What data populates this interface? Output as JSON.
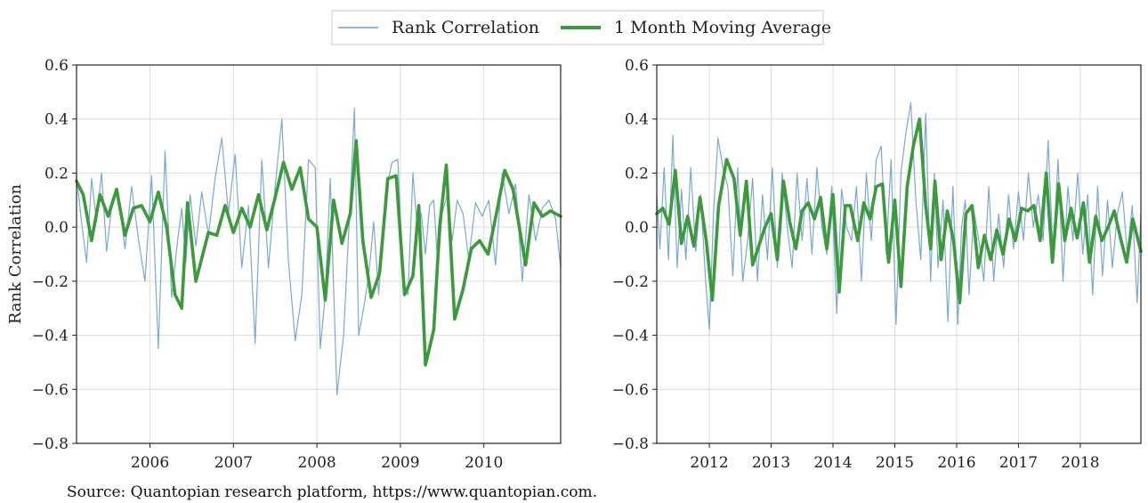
{
  "legend": {
    "items": [
      {
        "label": "Rank Correlation",
        "color": "#6b9fd1"
      },
      {
        "label": "1 Month Moving Average",
        "color": "#3c9a3c"
      }
    ],
    "placement": "top-center"
  },
  "source_text": "Source: Quantopian research platform, https://www.quantopian.com.",
  "colors": {
    "raw": "#6b9fd1",
    "ma": "#3c9a3c",
    "grid": "#dcdcdc",
    "axis": "#222222"
  },
  "chart_data": [
    {
      "type": "line",
      "ylabel": "Rank Correlation",
      "xlabel": "",
      "xlim": [
        2005.12,
        2010.92
      ],
      "ylim": [
        -0.8,
        0.6
      ],
      "y_ticks": [
        -0.8,
        -0.6,
        -0.4,
        -0.2,
        0.0,
        0.2,
        0.4,
        0.6
      ],
      "y_tick_labels": [
        "−0.8",
        "−0.6",
        "−0.4",
        "−0.2",
        "0.0",
        "0.2",
        "0.4",
        "0.6"
      ],
      "x_ticks": [
        2006,
        2007,
        2008,
        2009,
        2010
      ],
      "x_tick_labels": [
        "2006",
        "2007",
        "2008",
        "2009",
        "2010"
      ],
      "grid": true,
      "series": [
        {
          "name": "1 Month Moving Average",
          "x": [
            2005.12,
            2005.2,
            2005.3,
            2005.4,
            2005.5,
            2005.6,
            2005.7,
            2005.8,
            2005.9,
            2006.0,
            2006.1,
            2006.2,
            2006.3,
            2006.38,
            2006.45,
            2006.55,
            2006.7,
            2006.8,
            2006.9,
            2007.0,
            2007.1,
            2007.2,
            2007.3,
            2007.4,
            2007.5,
            2007.6,
            2007.7,
            2007.8,
            2007.9,
            2008.0,
            2008.1,
            2008.2,
            2008.3,
            2008.4,
            2008.47,
            2008.55,
            2008.65,
            2008.75,
            2008.85,
            2008.95,
            2009.05,
            2009.15,
            2009.22,
            2009.3,
            2009.4,
            2009.47,
            2009.55,
            2009.65,
            2009.75,
            2009.85,
            2009.95,
            2010.05,
            2010.15,
            2010.25,
            2010.35,
            2010.5,
            2010.6,
            2010.7,
            2010.8,
            2010.92
          ],
          "y": [
            0.17,
            0.12,
            -0.05,
            0.12,
            0.04,
            0.14,
            -0.03,
            0.07,
            0.08,
            0.02,
            0.13,
            0.0,
            -0.25,
            -0.3,
            0.09,
            -0.2,
            -0.02,
            -0.03,
            0.08,
            -0.02,
            0.07,
            0.0,
            0.12,
            -0.01,
            0.11,
            0.24,
            0.14,
            0.22,
            0.03,
            0.0,
            -0.27,
            0.1,
            -0.06,
            0.05,
            0.32,
            -0.05,
            -0.26,
            -0.17,
            0.18,
            0.19,
            -0.25,
            -0.18,
            0.08,
            -0.51,
            -0.38,
            0.0,
            0.23,
            -0.34,
            -0.23,
            -0.08,
            -0.05,
            -0.1,
            0.05,
            0.21,
            0.14,
            -0.14,
            0.09,
            0.04,
            0.06,
            0.04
          ]
        },
        {
          "name": "Rank Correlation",
          "x": [
            2005.12,
            2005.18,
            2005.24,
            2005.3,
            2005.36,
            2005.42,
            2005.48,
            2005.55,
            2005.62,
            2005.7,
            2005.78,
            2005.86,
            2005.94,
            2006.02,
            2006.1,
            2006.18,
            2006.26,
            2006.33,
            2006.38,
            2006.43,
            2006.48,
            2006.55,
            2006.62,
            2006.7,
            2006.78,
            2006.86,
            2006.94,
            2007.02,
            2007.1,
            2007.18,
            2007.26,
            2007.34,
            2007.42,
            2007.5,
            2007.58,
            2007.66,
            2007.74,
            2007.82,
            2007.9,
            2007.98,
            2008.04,
            2008.1,
            2008.16,
            2008.24,
            2008.32,
            2008.4,
            2008.45,
            2008.5,
            2008.56,
            2008.62,
            2008.68,
            2008.74,
            2008.82,
            2008.9,
            2008.97,
            2009.03,
            2009.09,
            2009.15,
            2009.2,
            2009.25,
            2009.3,
            2009.35,
            2009.4,
            2009.45,
            2009.5,
            2009.56,
            2009.62,
            2009.68,
            2009.75,
            2009.82,
            2009.9,
            2009.98,
            2010.06,
            2010.14,
            2010.22,
            2010.3,
            2010.38,
            2010.46,
            2010.54,
            2010.62,
            2010.7,
            2010.78,
            2010.86,
            2010.92
          ],
          "y": [
            0.19,
            0.02,
            -0.13,
            0.18,
            0.02,
            0.2,
            -0.09,
            0.1,
            0.13,
            -0.08,
            0.15,
            -0.04,
            -0.2,
            0.19,
            -0.45,
            0.28,
            -0.26,
            -0.05,
            0.07,
            -0.13,
            0.12,
            -0.07,
            0.13,
            -0.03,
            0.18,
            0.33,
            0.05,
            0.27,
            -0.15,
            0.08,
            -0.43,
            0.25,
            -0.15,
            0.15,
            0.4,
            -0.13,
            -0.42,
            -0.25,
            0.25,
            0.22,
            -0.45,
            -0.25,
            0.18,
            -0.62,
            -0.4,
            0.1,
            0.44,
            -0.4,
            -0.3,
            -0.18,
            0.02,
            -0.25,
            0.12,
            0.24,
            0.25,
            -0.2,
            -0.25,
            0.2,
            0.0,
            0.05,
            -0.1,
            0.08,
            0.1,
            -0.15,
            0.05,
            0.12,
            -0.05,
            0.1,
            0.05,
            -0.12,
            0.09,
            0.04,
            0.1,
            -0.14,
            0.2,
            0.05,
            0.16,
            -0.2,
            0.12,
            -0.05,
            0.07,
            0.1,
            0.03,
            -0.15
          ]
        }
      ]
    },
    {
      "type": "line",
      "ylabel": "",
      "xlabel": "",
      "xlim": [
        2011.15,
        2018.98
      ],
      "ylim": [
        -0.8,
        0.6
      ],
      "y_ticks": [
        -0.8,
        -0.6,
        -0.4,
        -0.2,
        0.0,
        0.2,
        0.4,
        0.6
      ],
      "y_tick_labels": [
        "−0.8",
        "−0.6",
        "−0.4",
        "−0.2",
        "0.0",
        "0.2",
        "0.4",
        "0.6"
      ],
      "x_ticks": [
        2012,
        2013,
        2014,
        2015,
        2016,
        2017,
        2018
      ],
      "x_tick_labels": [
        "2012",
        "2013",
        "2014",
        "2015",
        "2016",
        "2017",
        "2018"
      ],
      "grid": true,
      "series": [
        {
          "name": "1 Month Moving Average",
          "x": [
            2011.15,
            2011.25,
            2011.35,
            2011.45,
            2011.55,
            2011.65,
            2011.75,
            2011.85,
            2011.95,
            2012.05,
            2012.15,
            2012.28,
            2012.4,
            2012.5,
            2012.6,
            2012.7,
            2012.8,
            2012.9,
            2013.0,
            2013.1,
            2013.2,
            2013.3,
            2013.4,
            2013.5,
            2013.6,
            2013.7,
            2013.8,
            2013.9,
            2014.0,
            2014.1,
            2014.2,
            2014.28,
            2014.4,
            2014.5,
            2014.6,
            2014.7,
            2014.8,
            2014.9,
            2015.0,
            2015.1,
            2015.2,
            2015.3,
            2015.4,
            2015.5,
            2015.58,
            2015.65,
            2015.75,
            2015.85,
            2015.95,
            2016.05,
            2016.15,
            2016.25,
            2016.35,
            2016.45,
            2016.55,
            2016.65,
            2016.75,
            2016.85,
            2016.95,
            2017.05,
            2017.15,
            2017.25,
            2017.35,
            2017.45,
            2017.55,
            2017.65,
            2017.75,
            2017.85,
            2017.95,
            2018.05,
            2018.15,
            2018.25,
            2018.35,
            2018.45,
            2018.55,
            2018.65,
            2018.75,
            2018.85,
            2018.98
          ],
          "y": [
            0.05,
            0.07,
            0.01,
            0.21,
            -0.06,
            0.04,
            -0.07,
            0.11,
            -0.05,
            -0.27,
            0.08,
            0.25,
            0.18,
            -0.03,
            0.17,
            -0.14,
            -0.07,
            0.0,
            0.05,
            -0.12,
            0.17,
            0.02,
            -0.08,
            0.06,
            0.09,
            0.03,
            0.11,
            -0.08,
            0.12,
            -0.24,
            0.08,
            0.08,
            -0.05,
            0.09,
            0.03,
            0.15,
            0.16,
            -0.13,
            0.1,
            -0.22,
            0.15,
            0.3,
            0.4,
            0.08,
            -0.08,
            0.17,
            -0.12,
            0.06,
            -0.05,
            -0.28,
            0.05,
            0.08,
            -0.15,
            -0.03,
            -0.12,
            -0.01,
            -0.1,
            0.03,
            -0.05,
            0.07,
            0.06,
            0.08,
            -0.05,
            0.2,
            -0.13,
            0.16,
            -0.05,
            0.07,
            -0.04,
            0.09,
            -0.13,
            0.04,
            -0.05,
            0.0,
            0.06,
            -0.04,
            -0.13,
            0.03,
            -0.09
          ]
        },
        {
          "name": "Rank Correlation",
          "x": [
            2011.15,
            2011.2,
            2011.27,
            2011.34,
            2011.41,
            2011.48,
            2011.55,
            2011.62,
            2011.7,
            2011.78,
            2011.86,
            2011.94,
            2012.0,
            2012.07,
            2012.14,
            2012.22,
            2012.3,
            2012.38,
            2012.46,
            2012.54,
            2012.62,
            2012.7,
            2012.78,
            2012.86,
            2012.94,
            2013.02,
            2013.1,
            2013.18,
            2013.26,
            2013.34,
            2013.42,
            2013.5,
            2013.58,
            2013.66,
            2013.74,
            2013.82,
            2013.9,
            2013.98,
            2014.06,
            2014.14,
            2014.22,
            2014.3,
            2014.38,
            2014.46,
            2014.54,
            2014.62,
            2014.7,
            2014.78,
            2014.86,
            2014.94,
            2015.02,
            2015.1,
            2015.18,
            2015.26,
            2015.34,
            2015.42,
            2015.5,
            2015.58,
            2015.64,
            2015.7,
            2015.78,
            2015.86,
            2015.94,
            2016.02,
            2016.08,
            2016.14,
            2016.2,
            2016.28,
            2016.36,
            2016.44,
            2016.52,
            2016.6,
            2016.68,
            2016.76,
            2016.84,
            2016.92,
            2017.0,
            2017.08,
            2017.16,
            2017.24,
            2017.32,
            2017.4,
            2017.48,
            2017.56,
            2017.64,
            2017.72,
            2017.8,
            2017.88,
            2017.96,
            2018.04,
            2018.12,
            2018.2,
            2018.28,
            2018.36,
            2018.44,
            2018.52,
            2018.6,
            2018.68,
            2018.76,
            2018.84,
            2018.92,
            2018.98
          ],
          "y": [
            0.12,
            -0.08,
            0.22,
            -0.12,
            0.34,
            -0.15,
            0.14,
            -0.12,
            0.22,
            -0.09,
            0.12,
            -0.2,
            -0.38,
            0.06,
            0.33,
            0.22,
            0.15,
            -0.18,
            0.22,
            -0.2,
            -0.05,
            0.18,
            -0.2,
            0.12,
            -0.12,
            0.22,
            -0.15,
            0.2,
            0.0,
            -0.15,
            0.2,
            -0.05,
            0.18,
            -0.1,
            0.22,
            0.0,
            -0.1,
            0.15,
            -0.32,
            0.14,
            0.0,
            -0.05,
            0.15,
            -0.2,
            0.2,
            -0.05,
            0.25,
            0.3,
            -0.1,
            0.25,
            -0.36,
            0.2,
            0.35,
            0.46,
            0.1,
            -0.12,
            0.42,
            -0.2,
            0.2,
            -0.15,
            0.1,
            -0.35,
            0.15,
            -0.36,
            0.0,
            0.1,
            -0.25,
            0.06,
            -0.05,
            -0.2,
            0.15,
            -0.2,
            0.05,
            -0.15,
            0.12,
            -0.08,
            0.13,
            -0.05,
            0.2,
            0.0,
            0.12,
            -0.05,
            0.32,
            -0.1,
            0.25,
            -0.2,
            0.15,
            -0.05,
            0.2,
            -0.1,
            0.12,
            -0.25,
            0.15,
            -0.18,
            0.1,
            -0.15,
            0.05,
            0.13,
            -0.1,
            0.08,
            -0.28,
            0.05
          ]
        }
      ]
    }
  ]
}
